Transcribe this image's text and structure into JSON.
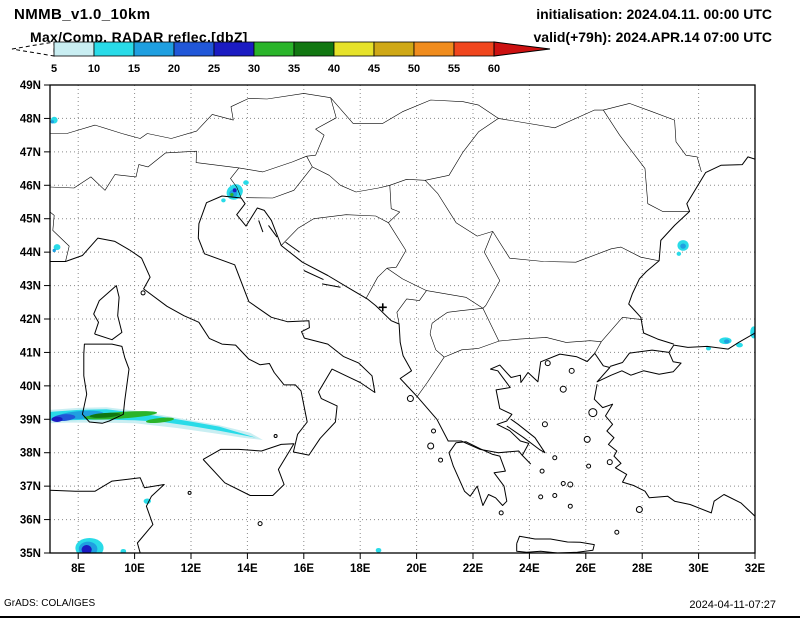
{
  "header": {
    "model": "NMMB_v1.0_10km",
    "init": "initialisation: 2024.04.11. 00:00 UTC",
    "product": "Max/Comp. RADAR reflec.[dbZ]",
    "valid": "valid(+79h): 2024.APR.14 07:00 UTC"
  },
  "colorbar": {
    "tick_labels": [
      "5",
      "10",
      "15",
      "20",
      "25",
      "30",
      "35",
      "40",
      "45",
      "50",
      "55",
      "60"
    ],
    "below_min_color": "#ffffff",
    "interval_colors": [
      "#c9eef2",
      "#29dbe8",
      "#1f9fe0",
      "#2157d8",
      "#1b1bc2",
      "#2ab42a",
      "#117711",
      "#e6e22a",
      "#cfa816",
      "#f08c1e",
      "#f0461e"
    ],
    "above_max_color": "#cc1111"
  },
  "map": {
    "lon_ticks": [
      "8E",
      "10E",
      "12E",
      "14E",
      "16E",
      "18E",
      "20E",
      "22E",
      "24E",
      "26E",
      "28E",
      "30E",
      "32E"
    ],
    "lat_ticks": [
      "49N",
      "48N",
      "47N",
      "46N",
      "45N",
      "44N",
      "43N",
      "42N",
      "41N",
      "40N",
      "39N",
      "38N",
      "37N",
      "36N",
      "35N"
    ],
    "lon_range": [
      7,
      32
    ],
    "lat_range": [
      35,
      49
    ],
    "marker": {
      "lon": 18.8,
      "lat": 42.35,
      "symbol": "+"
    }
  },
  "radar_cells": [
    {
      "t": "p",
      "c": "#c9eef2",
      "pts": [
        [
          7,
          39.28
        ],
        [
          8,
          39.34
        ],
        [
          9,
          39.36
        ],
        [
          10,
          39.26
        ],
        [
          11,
          39.12
        ],
        [
          12,
          38.97
        ],
        [
          13,
          38.82
        ],
        [
          14.1,
          38.6
        ],
        [
          14.55,
          38.38
        ],
        [
          13.9,
          38.44
        ],
        [
          12.8,
          38.58
        ],
        [
          11.5,
          38.74
        ],
        [
          10,
          38.88
        ],
        [
          8.8,
          38.9
        ],
        [
          7.6,
          38.9
        ],
        [
          7,
          38.88
        ]
      ]
    },
    {
      "t": "p",
      "c": "#29dbe8",
      "pts": [
        [
          7,
          39.22
        ],
        [
          8,
          39.28
        ],
        [
          9,
          39.3
        ],
        [
          10,
          39.2
        ],
        [
          11,
          39.07
        ],
        [
          12,
          38.93
        ],
        [
          13,
          38.78
        ],
        [
          14.3,
          38.45
        ],
        [
          13,
          38.66
        ],
        [
          12,
          38.8
        ],
        [
          11,
          38.92
        ],
        [
          10,
          38.97
        ],
        [
          9,
          38.99
        ],
        [
          8,
          38.98
        ],
        [
          7,
          38.96
        ]
      ]
    },
    {
      "t": "e",
      "c": "#1f9fe0",
      "lon": 8.1,
      "lat": 39.13,
      "rx": 0.8,
      "ry": 0.12,
      "rot": -4
    },
    {
      "t": "e",
      "c": "#2157d8",
      "lon": 7.5,
      "lat": 39.05,
      "rx": 0.4,
      "ry": 0.1,
      "rot": -4
    },
    {
      "t": "e",
      "c": "#1b1bc2",
      "lon": 7.25,
      "lat": 39.0,
      "rx": 0.2,
      "ry": 0.08,
      "rot": 0
    },
    {
      "t": "e",
      "c": "#2ab42a",
      "lon": 9.5,
      "lat": 39.12,
      "rx": 1.3,
      "ry": 0.1,
      "rot": -4
    },
    {
      "t": "e",
      "c": "#117711",
      "lon": 8.95,
      "lat": 39.12,
      "rx": 0.55,
      "ry": 0.07,
      "rot": -4
    },
    {
      "t": "e",
      "c": "#2ab42a",
      "lon": 10.9,
      "lat": 38.97,
      "rx": 0.5,
      "ry": 0.07,
      "rot": -6
    },
    {
      "t": "e",
      "c": "#29dbe8",
      "lon": 13.55,
      "lat": 45.8,
      "rx": 0.3,
      "ry": 0.22,
      "rot": -35
    },
    {
      "t": "e",
      "c": "#1f9fe0",
      "lon": 13.5,
      "lat": 45.75,
      "rx": 0.15,
      "ry": 0.12,
      "rot": -35
    },
    {
      "t": "e",
      "c": "#1b1bc2",
      "lon": 13.55,
      "lat": 45.85,
      "rx": 0.07,
      "ry": 0.06,
      "rot": 0
    },
    {
      "t": "e",
      "c": "#2ab42a",
      "lon": 13.45,
      "lat": 45.72,
      "rx": 0.06,
      "ry": 0.05,
      "rot": 0
    },
    {
      "t": "e",
      "c": "#29dbe8",
      "lon": 13.95,
      "lat": 46.08,
      "rx": 0.1,
      "ry": 0.07,
      "rot": 0
    },
    {
      "t": "e",
      "c": "#29dbe8",
      "lon": 13.15,
      "lat": 45.55,
      "rx": 0.08,
      "ry": 0.06,
      "rot": 0
    },
    {
      "t": "e",
      "c": "#29dbe8",
      "lon": 7.15,
      "lat": 47.95,
      "rx": 0.12,
      "ry": 0.1,
      "rot": 0
    },
    {
      "t": "e",
      "c": "#1f9fe0",
      "lon": 7.08,
      "lat": 47.9,
      "rx": 0.06,
      "ry": 0.05,
      "rot": 0
    },
    {
      "t": "e",
      "c": "#29dbe8",
      "lon": 7.25,
      "lat": 44.15,
      "rx": 0.12,
      "ry": 0.09,
      "rot": 0
    },
    {
      "t": "e",
      "c": "#1f9fe0",
      "lon": 7.15,
      "lat": 44.05,
      "rx": 0.06,
      "ry": 0.05,
      "rot": 0
    },
    {
      "t": "e",
      "c": "#29dbe8",
      "lon": 8.4,
      "lat": 35.15,
      "rx": 0.5,
      "ry": 0.3,
      "rot": 0
    },
    {
      "t": "e",
      "c": "#1f9fe0",
      "lon": 8.35,
      "lat": 35.12,
      "rx": 0.33,
      "ry": 0.22,
      "rot": 0
    },
    {
      "t": "e",
      "c": "#1b1bc2",
      "lon": 8.3,
      "lat": 35.1,
      "rx": 0.18,
      "ry": 0.14,
      "rot": 0
    },
    {
      "t": "e",
      "c": "#29dbe8",
      "lon": 10.45,
      "lat": 36.55,
      "rx": 0.13,
      "ry": 0.08,
      "rot": 0
    },
    {
      "t": "e",
      "c": "#29dbe8",
      "lon": 9.6,
      "lat": 35.05,
      "rx": 0.1,
      "ry": 0.07,
      "rot": 0
    },
    {
      "t": "e",
      "c": "#29dbe8",
      "lon": 29.45,
      "lat": 44.2,
      "rx": 0.2,
      "ry": 0.16,
      "rot": 0
    },
    {
      "t": "e",
      "c": "#1f9fe0",
      "lon": 29.45,
      "lat": 44.18,
      "rx": 0.1,
      "ry": 0.08,
      "rot": 0
    },
    {
      "t": "e",
      "c": "#29dbe8",
      "lon": 29.3,
      "lat": 43.95,
      "rx": 0.08,
      "ry": 0.06,
      "rot": 0
    },
    {
      "t": "e",
      "c": "#29dbe8",
      "lon": 30.95,
      "lat": 41.35,
      "rx": 0.22,
      "ry": 0.1,
      "rot": 0
    },
    {
      "t": "e",
      "c": "#1f9fe0",
      "lon": 31.0,
      "lat": 41.33,
      "rx": 0.1,
      "ry": 0.06,
      "rot": 0
    },
    {
      "t": "e",
      "c": "#29dbe8",
      "lon": 31.45,
      "lat": 41.22,
      "rx": 0.12,
      "ry": 0.07,
      "rot": 0
    },
    {
      "t": "e",
      "c": "#29dbe8",
      "lon": 30.35,
      "lat": 41.12,
      "rx": 0.09,
      "ry": 0.06,
      "rot": 0
    },
    {
      "t": "e",
      "c": "#29dbe8",
      "lon": 31.95,
      "lat": 41.6,
      "rx": 0.12,
      "ry": 0.18,
      "rot": 0
    },
    {
      "t": "e",
      "c": "#1f9fe0",
      "lon": 32.0,
      "lat": 41.55,
      "rx": 0.06,
      "ry": 0.09,
      "rot": 0
    },
    {
      "t": "e",
      "c": "#29dbe8",
      "lon": 18.65,
      "lat": 35.08,
      "rx": 0.1,
      "ry": 0.07,
      "rot": 0
    }
  ],
  "footer": {
    "left": "GrADS: COLA/IGES",
    "right": "2024-04-11-07:27"
  }
}
